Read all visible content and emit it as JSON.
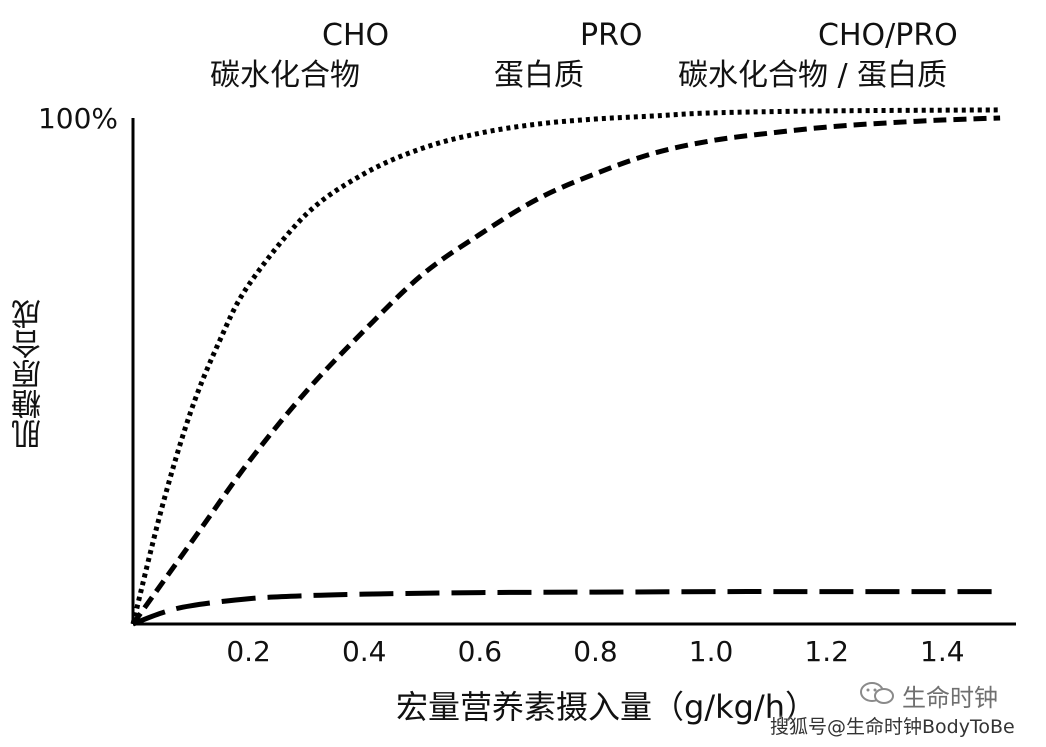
{
  "chart_data": {
    "type": "line",
    "title": "",
    "xlabel": "宏量营养素摄入量（g/kg/h）",
    "ylabel": "肌糖原合成",
    "xlim": [
      0,
      1.5
    ],
    "ylim": [
      0,
      100
    ],
    "x_ticks": [
      "0.2",
      "0.4",
      "0.6",
      "0.8",
      "1.0",
      "1.2",
      "1.4"
    ],
    "x_tick_values": [
      0.2,
      0.4,
      0.6,
      0.8,
      1.0,
      1.2,
      1.4
    ],
    "y_ticks": [
      "100%"
    ],
    "y_tick_values": [
      100
    ],
    "legend_position": "top",
    "series": [
      {
        "name": "CHO",
        "label_cn": "碳水化合物",
        "style": "short-dash",
        "x": [
          0,
          0.1,
          0.2,
          0.3,
          0.4,
          0.5,
          0.6,
          0.7,
          0.8,
          0.9,
          1.0,
          1.1,
          1.2,
          1.3,
          1.4,
          1.5
        ],
        "y": [
          0,
          16,
          32,
          46,
          58,
          69,
          77,
          84,
          89,
          93,
          95.5,
          97,
          98.2,
          99,
          99.6,
          100
        ]
      },
      {
        "name": "PRO",
        "label_cn": "蛋白质",
        "style": "long-dash",
        "x": [
          0,
          0.05,
          0.1,
          0.2,
          0.3,
          0.4,
          0.6,
          0.8,
          1.0,
          1.2,
          1.5
        ],
        "y": [
          0,
          2.2,
          3.6,
          5.0,
          5.6,
          5.9,
          6.2,
          6.3,
          6.4,
          6.4,
          6.4
        ]
      },
      {
        "name": "CHO/PRO",
        "label_cn": "碳水化合物 / 蛋白质",
        "style": "dotted",
        "x": [
          0,
          0.05,
          0.1,
          0.15,
          0.2,
          0.3,
          0.4,
          0.5,
          0.6,
          0.7,
          0.8,
          0.9,
          1.0,
          1.2,
          1.5
        ],
        "y": [
          0,
          23,
          42,
          56,
          67,
          81,
          89,
          94,
          97,
          98.8,
          99.8,
          100.4,
          101,
          101.4,
          101.6
        ]
      }
    ]
  },
  "watermark": {
    "brand": "生命时钟",
    "source": "搜狐号@生命时钟BodyToBe"
  }
}
